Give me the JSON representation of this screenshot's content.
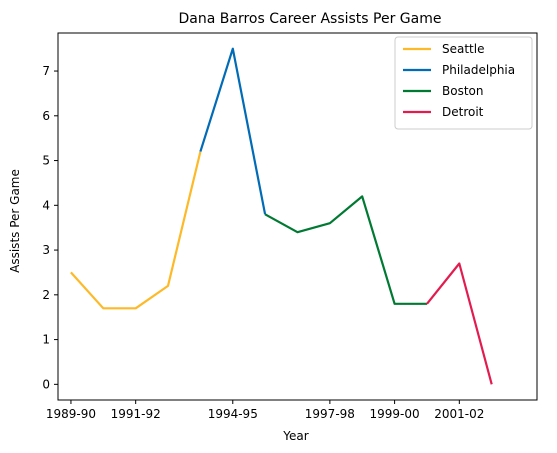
{
  "chart_data": {
    "type": "line",
    "title": "Dana Barros Career Assists Per Game",
    "xlabel": "Year",
    "ylabel": "Assists Per Game",
    "x_ticks": [
      "1989-90",
      "1991-92",
      "1994-95",
      "1997-98",
      "1999-00",
      "2001-02"
    ],
    "y_ticks": [
      "0",
      "1",
      "2",
      "3",
      "4",
      "5",
      "6",
      "7"
    ],
    "ylim": [
      -0.35,
      7.85
    ],
    "grid": false,
    "legend": "top-right",
    "series": [
      {
        "name": "Seattle",
        "color": "#FDB927",
        "points": [
          {
            "x": "1989-90",
            "y": 2.5
          },
          {
            "x": "1990-91",
            "y": 1.7
          },
          {
            "x": "1991-92",
            "y": 1.7
          },
          {
            "x": "1992-93",
            "y": 2.2
          },
          {
            "x": "1993-94",
            "y": 5.2
          }
        ]
      },
      {
        "name": "Philadelphia",
        "color": "#006BB6",
        "points": [
          {
            "x": "1993-94",
            "y": 5.2
          },
          {
            "x": "1994-95",
            "y": 7.5
          },
          {
            "x": "1995-96",
            "y": 3.8
          }
        ]
      },
      {
        "name": "Boston",
        "color": "#007A33",
        "points": [
          {
            "x": "1995-96",
            "y": 3.8
          },
          {
            "x": "1996-97",
            "y": 3.4
          },
          {
            "x": "1997-98",
            "y": 3.6
          },
          {
            "x": "1998-99",
            "y": 4.2
          },
          {
            "x": "1999-00",
            "y": 1.8
          },
          {
            "x": "2000-01",
            "y": 1.8
          }
        ]
      },
      {
        "name": "Detroit",
        "color": "#E31C4F",
        "points": [
          {
            "x": "2000-01",
            "y": 1.8
          },
          {
            "x": "2001-02",
            "y": 2.7
          },
          {
            "x": "2002-03",
            "y": 0.0
          }
        ]
      }
    ]
  }
}
